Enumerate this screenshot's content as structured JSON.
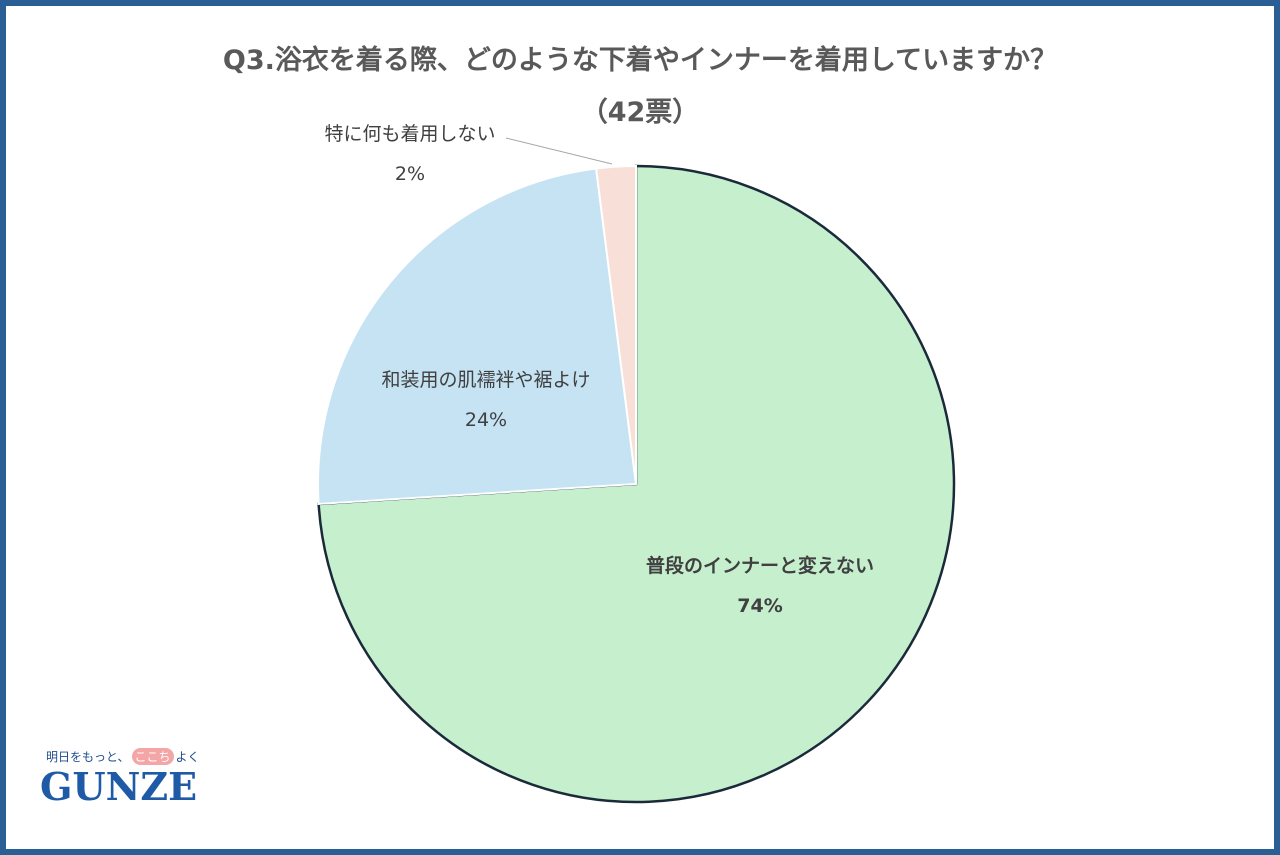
{
  "chart_data": {
    "type": "pie",
    "title": "Q3.浴衣を着る際、どのような下着やインナーを着用していますか？",
    "subtitle": "（42票）",
    "slices": [
      {
        "label": "普段のインナーと変えない",
        "percent_label": "74%",
        "value": 74,
        "color": "#c6efce"
      },
      {
        "label": "和装用の肌襦袢や裾よけ",
        "percent_label": "24%",
        "value": 24,
        "color": "#c5e3f3"
      },
      {
        "label": "特に何も着用しない",
        "percent_label": "2%",
        "value": 2,
        "color": "#f8e0d8"
      }
    ],
    "legend": "none"
  },
  "logo": {
    "tagline_before": "明日をもっと、",
    "tagline_highlight": "ここち",
    "tagline_after": "よく",
    "brand": "GUNZE"
  },
  "colors": {
    "frame": "#2a5f96",
    "title_text": "#595959",
    "highlight_border": "#1b2a3a"
  }
}
